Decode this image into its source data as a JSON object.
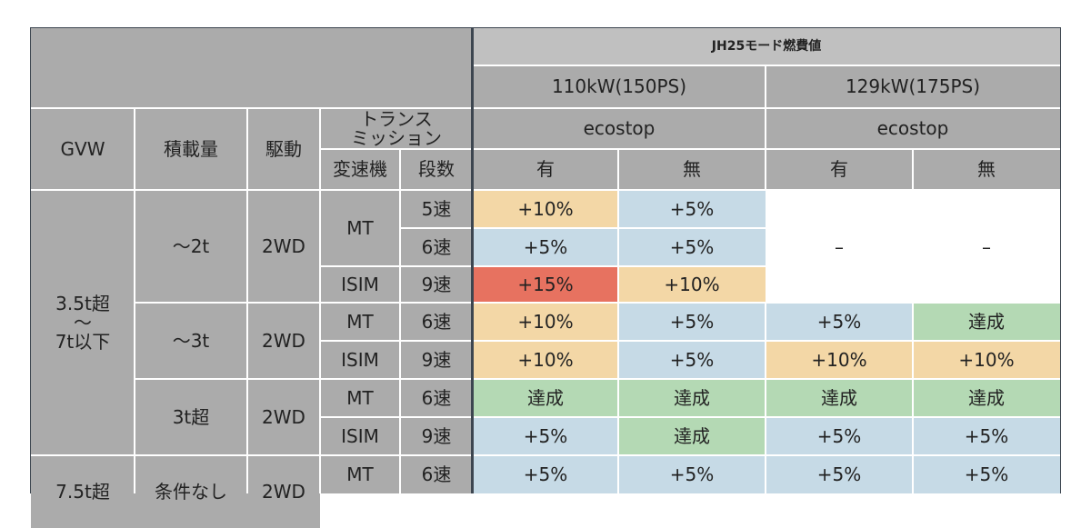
{
  "table": {
    "header": {
      "mode_title": "JH25モード燃費値",
      "power_110": "110kW(150PS)",
      "power_129": "129kW(175PS)",
      "ecostop_a": "ecostop",
      "ecostop_b": "ecostop",
      "gvw": "GVW",
      "load": "積載量",
      "drive": "駆動",
      "trans_line1": "トランス",
      "trans_line2": "ミッション",
      "gearbox": "変速機",
      "speeds": "段数",
      "yes_a": "有",
      "no_a": "無",
      "yes_b": "有",
      "no_b": "無"
    },
    "groups": {
      "g1_line1": "3.5t超",
      "g1_line2": "〜",
      "g1_line3": "7t以下",
      "g2_line1": "7.5t超",
      "load_2t": "〜2t",
      "load_3t": "〜3t",
      "load_3t_over": "3t超",
      "load_none": "条件なし",
      "drive_1": "2WD",
      "drive_2": "2WD",
      "drive_3": "2WD",
      "drive_4": "2WD"
    },
    "rows": [
      {
        "trans": "MT",
        "speed": "5速",
        "v1": "+10%",
        "v2": "+5%"
      },
      {
        "speed": "6速",
        "v1": "+5%",
        "v2": "+5%",
        "v3": "–",
        "v4": "–"
      },
      {
        "trans": "ISIM",
        "speed": "9速",
        "v1": "+15%",
        "v2": "+10%"
      },
      {
        "trans": "MT",
        "speed": "6速",
        "v1": "+10%",
        "v2": "+5%",
        "v3": "+5%",
        "v4": "達成"
      },
      {
        "trans": "ISIM",
        "speed": "9速",
        "v1": "+10%",
        "v2": "+5%",
        "v3": "+10%",
        "v4": "+10%"
      },
      {
        "trans": "MT",
        "speed": "6速",
        "v1": "達成",
        "v2": "達成",
        "v3": "達成",
        "v4": "達成"
      },
      {
        "trans": "ISIM",
        "speed": "9速",
        "v1": "+5%",
        "v2": "達成",
        "v3": "+5%",
        "v4": "+5%"
      },
      {
        "trans": "MT",
        "speed": "6速",
        "v1": "+5%",
        "v2": "+5%",
        "v3": "+5%",
        "v4": "+5%"
      }
    ]
  },
  "colors": {
    "header_gray": "#ababab",
    "orange": "#f3d7a6",
    "blue": "#c6dae6",
    "red": "#e77260",
    "green": "#b4d9b4",
    "divider": "#3d4650"
  }
}
